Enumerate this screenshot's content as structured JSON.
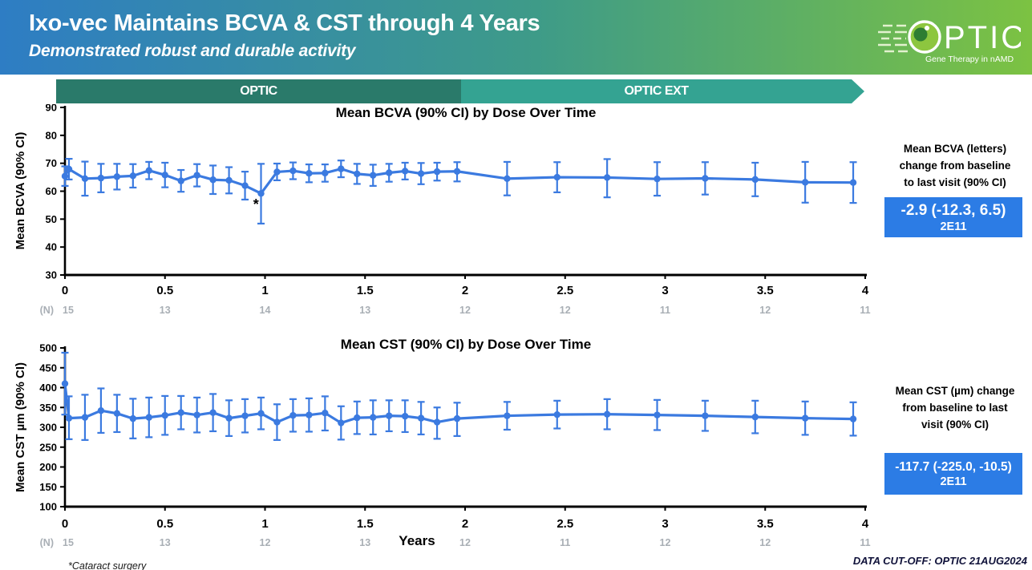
{
  "header": {
    "title": "Ixo-vec Maintains BCVA & CST through 4 Years",
    "subtitle": "Demonstrated robust and durable activity",
    "logo": {
      "wordmark": "PTIC",
      "tagline": "Gene Therapy in nAMD"
    }
  },
  "phase_bar": {
    "optic_label": "OPTIC",
    "ext_label": "OPTIC EXT",
    "optic_color": "#2A7A6A",
    "ext_color": "#34A392"
  },
  "chart_data": [
    {
      "type": "line",
      "title": "Mean BCVA (90% CI) by Dose Over Time",
      "ylabel": "Mean BCVA (90% CI)",
      "xlabel": "",
      "ylim": [
        30,
        90
      ],
      "yticks": [
        90,
        80,
        70,
        60,
        50,
        40,
        30
      ],
      "xlim": [
        0,
        4
      ],
      "xticks": [
        "0",
        "0.5",
        "1",
        "1.5",
        "2",
        "2.5",
        "3",
        "3.5",
        "4"
      ],
      "xtick_values": [
        0,
        0.5,
        1,
        1.5,
        2,
        2.5,
        3,
        3.5,
        4
      ],
      "n_row": {
        "prefix": "(N)",
        "values": [
          "15",
          "13",
          "14",
          "13",
          "12",
          "12",
          "11",
          "12",
          "11"
        ]
      },
      "grid": false,
      "legend": "none",
      "series": [
        {
          "name": "2E11",
          "color": "#3B7AE0",
          "points": [
            [
              0.0,
              65.4,
              61.9,
              68.9
            ],
            [
              0.02,
              67.9,
              64.2,
              71.6
            ],
            [
              0.1,
              64.5,
              58.4,
              70.6
            ],
            [
              0.18,
              64.7,
              59.6,
              69.8
            ],
            [
              0.26,
              65.2,
              60.6,
              69.8
            ],
            [
              0.34,
              65.5,
              61.3,
              69.7
            ],
            [
              0.42,
              67.4,
              64.3,
              70.5
            ],
            [
              0.5,
              65.8,
              61.4,
              70.2
            ],
            [
              0.58,
              63.7,
              59.8,
              67.6
            ],
            [
              0.66,
              65.7,
              61.7,
              69.7
            ],
            [
              0.74,
              64.1,
              59.0,
              69.2
            ],
            [
              0.82,
              63.9,
              59.2,
              68.6
            ],
            [
              0.9,
              62.0,
              57.0,
              67.0
            ],
            [
              0.98,
              59.2,
              48.4,
              69.8
            ],
            [
              1.06,
              66.9,
              63.9,
              69.9
            ],
            [
              1.14,
              67.3,
              64.3,
              70.3
            ],
            [
              1.22,
              66.4,
              63.2,
              69.6
            ],
            [
              1.3,
              66.5,
              63.4,
              69.6
            ],
            [
              1.38,
              68.0,
              65.0,
              71.0
            ],
            [
              1.46,
              66.2,
              62.6,
              69.8
            ],
            [
              1.54,
              65.7,
              61.9,
              69.5
            ],
            [
              1.62,
              66.6,
              63.4,
              69.8
            ],
            [
              1.7,
              67.2,
              64.2,
              70.2
            ],
            [
              1.78,
              66.3,
              62.5,
              70.1
            ],
            [
              1.86,
              67.0,
              63.8,
              70.2
            ],
            [
              1.96,
              67.1,
              63.5,
              70.4
            ],
            [
              2.21,
              64.5,
              58.5,
              70.5
            ],
            [
              2.46,
              65.0,
              59.6,
              70.4
            ],
            [
              2.71,
              64.9,
              57.8,
              71.5
            ],
            [
              2.96,
              64.4,
              58.4,
              70.4
            ],
            [
              3.2,
              64.6,
              58.8,
              70.4
            ],
            [
              3.45,
              64.2,
              58.2,
              70.2
            ],
            [
              3.7,
              63.2,
              55.9,
              70.5
            ],
            [
              3.94,
              63.1,
              55.8,
              70.4
            ]
          ]
        }
      ],
      "annotations": [
        {
          "text": "*",
          "x": 0.955,
          "y": 53.5
        }
      ]
    },
    {
      "type": "line",
      "title": "Mean CST (90% CI) by Dose Over Time",
      "ylabel": "Mean CST µm (90% CI)",
      "xlabel": "Years",
      "ylim": [
        100,
        500
      ],
      "yticks": [
        500,
        450,
        400,
        350,
        300,
        250,
        200,
        150,
        100
      ],
      "xlim": [
        0,
        4
      ],
      "xticks": [
        "0",
        "0.5",
        "1",
        "1.5",
        "2",
        "2.5",
        "3",
        "3.5",
        "4"
      ],
      "xtick_values": [
        0,
        0.5,
        1,
        1.5,
        2,
        2.5,
        3,
        3.5,
        4
      ],
      "n_row": {
        "prefix": "(N)",
        "values": [
          "15",
          "13",
          "12",
          "13",
          "12",
          "11",
          "12",
          "12",
          "11"
        ]
      },
      "grid": false,
      "legend": "none",
      "series": [
        {
          "name": "2E11",
          "color": "#3B7AE0",
          "points": [
            [
              0.0,
              410,
              332,
              488
            ],
            [
              0.02,
              323,
              270,
              378
            ],
            [
              0.1,
              325,
              268,
              382
            ],
            [
              0.18,
              342,
              286,
              398
            ],
            [
              0.26,
              335,
              288,
              382
            ],
            [
              0.34,
              322,
              272,
              372
            ],
            [
              0.42,
              325,
              275,
              375
            ],
            [
              0.5,
              330,
              281,
              379
            ],
            [
              0.58,
              337,
              295,
              379
            ],
            [
              0.66,
              331,
              287,
              375
            ],
            [
              0.74,
              337,
              290,
              384
            ],
            [
              0.82,
              323,
              278,
              368
            ],
            [
              0.9,
              329,
              287,
              371
            ],
            [
              0.98,
              335,
              295,
              375
            ],
            [
              1.06,
              313,
              268,
              358
            ],
            [
              1.14,
              330,
              289,
              371
            ],
            [
              1.22,
              331,
              289,
              373
            ],
            [
              1.3,
              336,
              292,
              378
            ],
            [
              1.38,
              311,
              269,
              353
            ],
            [
              1.46,
              324,
              283,
              365
            ],
            [
              1.54,
              325,
              282,
              368
            ],
            [
              1.62,
              329,
              290,
              368
            ],
            [
              1.7,
              328,
              288,
              368
            ],
            [
              1.78,
              323,
              282,
              364
            ],
            [
              1.86,
              313,
              271,
              350
            ],
            [
              1.96,
              322,
              278,
              362
            ],
            [
              2.21,
              329,
              294,
              364
            ],
            [
              2.46,
              332,
              297,
              367
            ],
            [
              2.71,
              333,
              295,
              371
            ],
            [
              2.96,
              331,
              293,
              369
            ],
            [
              3.2,
              329,
              291,
              367
            ],
            [
              3.45,
              326,
              285,
              367
            ],
            [
              3.7,
              323,
              281,
              365
            ],
            [
              3.94,
              321,
              279,
              363
            ]
          ]
        }
      ],
      "annotations": []
    }
  ],
  "side_panels": {
    "bcva": {
      "caption": "Mean BCVA (letters)\nchange from baseline\nto last visit (90% CI)",
      "box_value": "-2.9 (-12.3, 6.5)",
      "box_dose": "2E11",
      "box_color": "#2C7CE5"
    },
    "cst": {
      "caption": "Mean CST (µm) change\nfrom baseline to last\nvisit (90% CI)",
      "box_value": "-117.7 (-225.0, -10.5)",
      "box_dose": "2E11",
      "box_color": "#2C7CE5"
    }
  },
  "footer": {
    "note": "*Cataract surgery",
    "cutoff": "DATA CUT-OFF: OPTIC 21AUG2024"
  }
}
